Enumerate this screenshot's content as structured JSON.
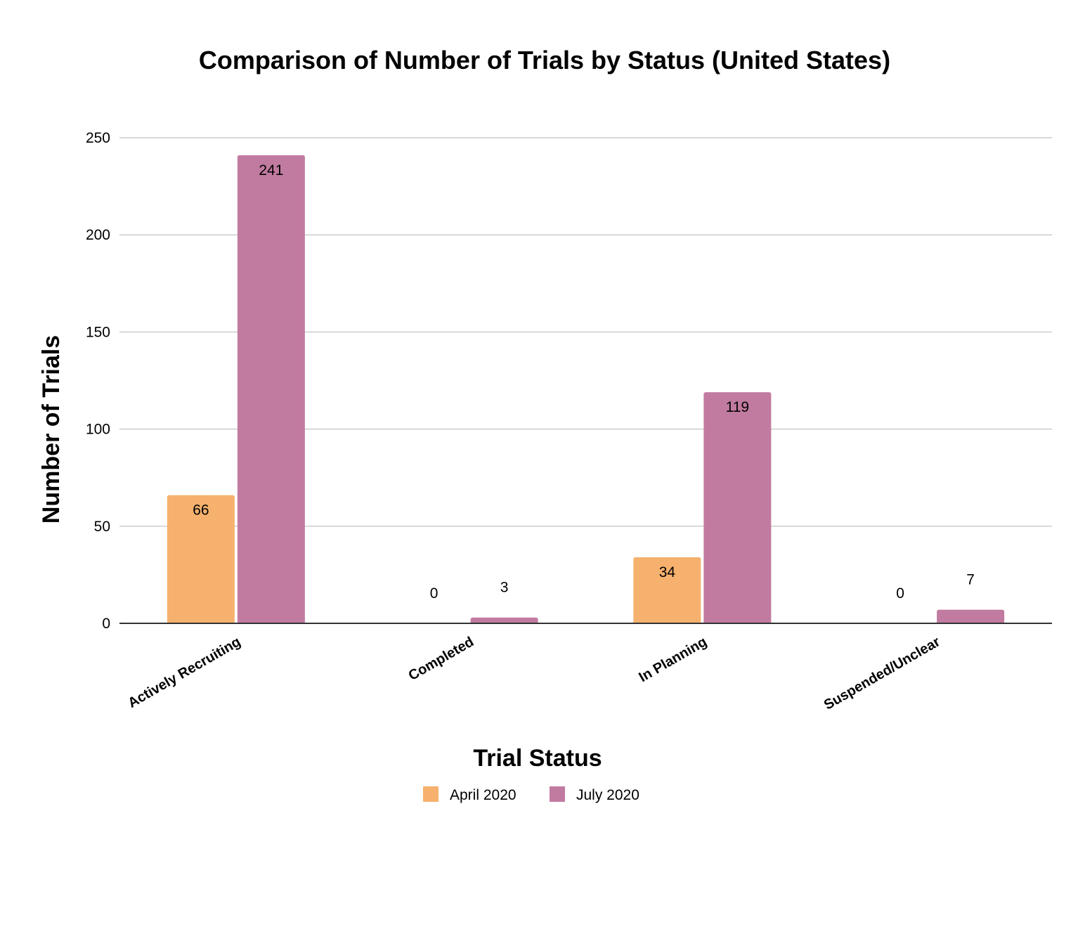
{
  "chart_data": {
    "type": "bar",
    "title": "Comparison of Number of Trials by Status (United States)",
    "xlabel": "Trial Status",
    "ylabel": "Number of Trials",
    "categories": [
      "Actively Recruiting",
      "Completed",
      "In Planning",
      "Suspended/Unclear"
    ],
    "series": [
      {
        "name": "April 2020",
        "values": [
          66,
          0,
          34,
          0
        ],
        "color": "#f5b16d"
      },
      {
        "name": "July 2020",
        "values": [
          241,
          3,
          119,
          7
        ],
        "color": "#c27ba0"
      }
    ],
    "ylim": [
      0,
      250
    ],
    "yticks": [
      0,
      50,
      100,
      150,
      200,
      250
    ],
    "grid": true,
    "legend_position": "bottom"
  }
}
